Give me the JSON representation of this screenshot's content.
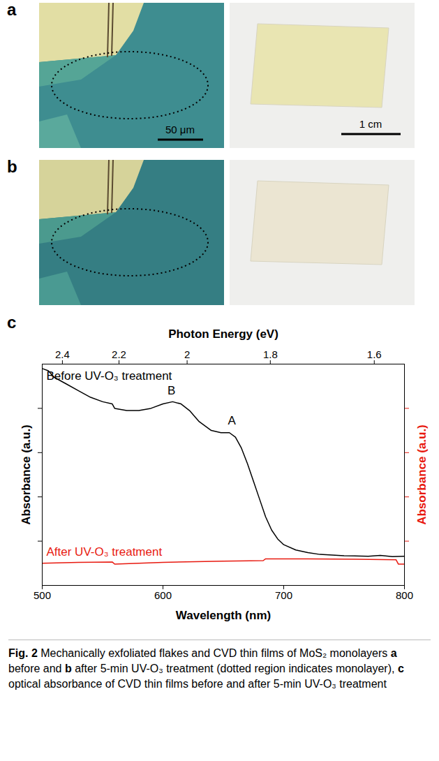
{
  "panels": [
    {
      "letter": "a",
      "scale_bars": [
        "50 μm",
        "1 cm"
      ]
    },
    {
      "letter": "b"
    },
    {
      "letter": "c"
    }
  ],
  "chart_data": {
    "type": "line",
    "xlabel": "Wavelength (nm)",
    "x2label": "Photon Energy (eV)",
    "ylabel": "Absorbance (a.u.)",
    "y2label": "Absorbance (a.u.)",
    "xlim": [
      500,
      800
    ],
    "xticks": [
      500,
      600,
      700,
      800
    ],
    "x2ticks": [
      {
        "value": 516.7,
        "label": "2.4"
      },
      {
        "value": 563.6,
        "label": "2.2"
      },
      {
        "value": 620,
        "label": "2"
      },
      {
        "value": 688.9,
        "label": "1.8"
      },
      {
        "value": 775,
        "label": "1.6"
      }
    ],
    "ylim": [
      0,
      5
    ],
    "yticks": [
      1,
      2,
      3,
      4
    ],
    "y2lim": [
      0,
      5
    ],
    "y2ticks": [
      1,
      2,
      3,
      4
    ],
    "tick_labels": "x",
    "grid": false,
    "series": [
      {
        "name": "Before UV-O₃ treatment",
        "color": "#000000",
        "x": [
          500,
          505,
          510,
          520,
          530,
          540,
          550,
          558,
          560,
          570,
          580,
          590,
          600,
          608,
          615,
          622,
          630,
          640,
          648,
          655,
          660,
          665,
          670,
          675,
          680,
          685,
          690,
          695,
          700,
          710,
          720,
          730,
          750,
          770,
          780,
          790,
          800
        ],
        "values": [
          4.9,
          4.85,
          4.7,
          4.55,
          4.4,
          4.25,
          4.15,
          4.1,
          4.0,
          3.95,
          3.95,
          4.0,
          4.1,
          4.15,
          4.1,
          3.95,
          3.7,
          3.5,
          3.45,
          3.45,
          3.35,
          3.1,
          2.75,
          2.35,
          1.95,
          1.55,
          1.25,
          1.05,
          0.92,
          0.8,
          0.74,
          0.7,
          0.67,
          0.66,
          0.68,
          0.65,
          0.66
        ]
      },
      {
        "name": "After UV-O₃ treatment",
        "color": "#e8190f",
        "axis": "y2",
        "x": [
          500,
          530,
          558,
          560,
          600,
          650,
          683,
          685,
          720,
          760,
          793,
          795,
          800
        ],
        "values": [
          0.5,
          0.52,
          0.53,
          0.48,
          0.52,
          0.55,
          0.56,
          0.6,
          0.6,
          0.59,
          0.58,
          0.48,
          0.48
        ]
      }
    ],
    "annotations": [
      {
        "text": "B",
        "x": 607,
        "y": 4.4
      },
      {
        "text": "A",
        "x": 657,
        "y": 3.72
      }
    ]
  },
  "caption": [
    {
      "text": "Fig. 2",
      "bold": true
    },
    {
      "text": " Mechanically exfoliated flakes and CVD thin films of MoS₂ monolayers "
    },
    {
      "text": "a",
      "bold": true
    },
    {
      "text": " before and "
    },
    {
      "text": "b",
      "bold": true
    },
    {
      "text": " after 5-min UV-O₃ treatment (dotted region indicates monolayer), "
    },
    {
      "text": "c",
      "bold": true
    },
    {
      "text": " optical absorbance of CVD thin films before and after 5-min UV-O₃ treatment"
    }
  ]
}
